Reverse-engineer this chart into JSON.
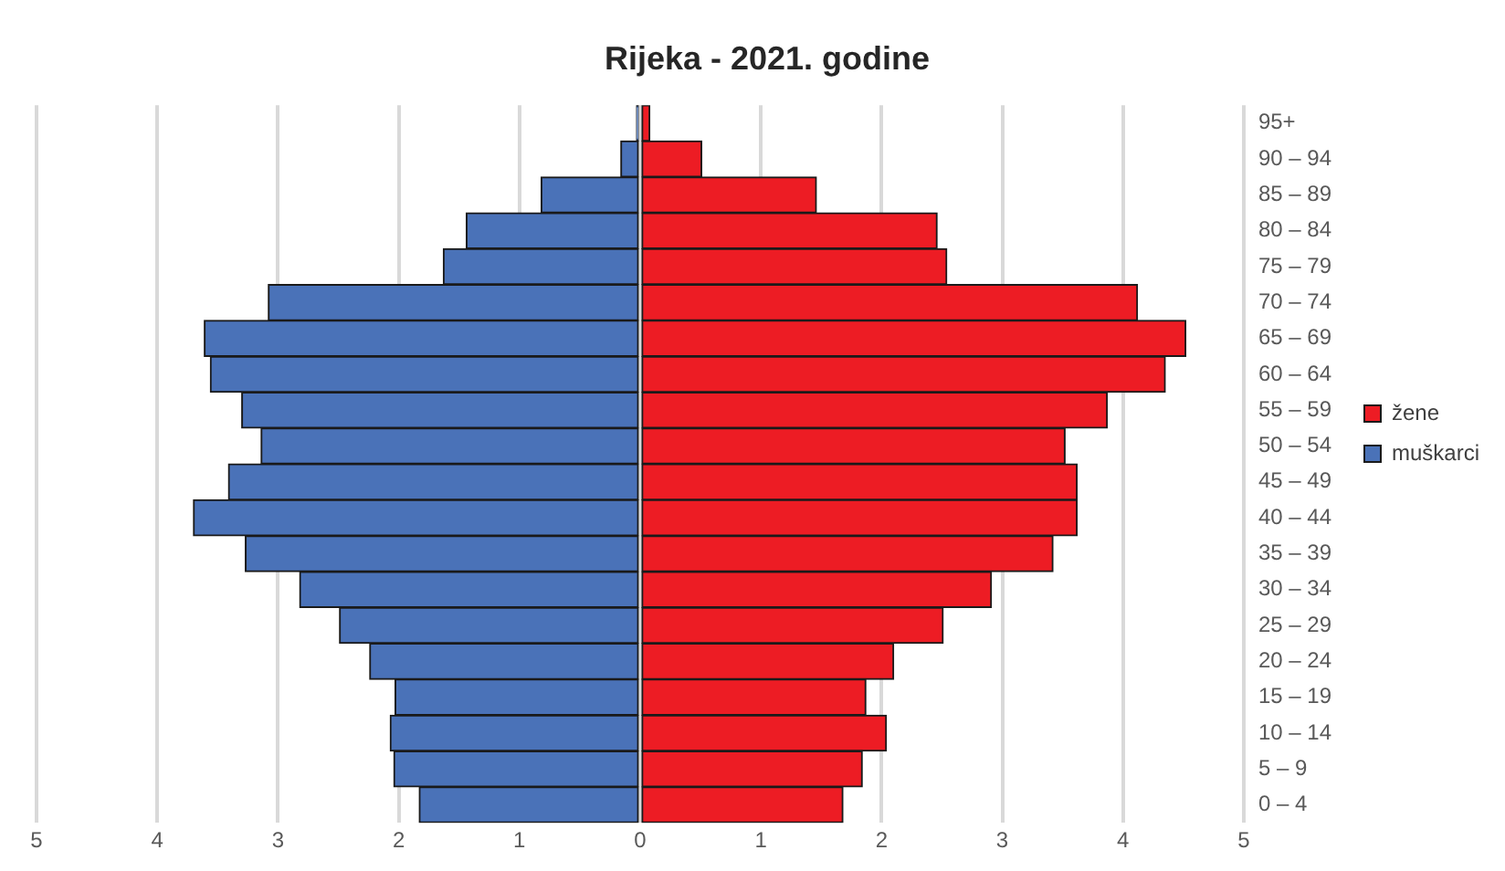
{
  "chart_data": {
    "type": "bar",
    "title": "Rijeka - 2021. godine",
    "orientation": "horizontal",
    "stacked": true,
    "categories": [
      "95+",
      "90 – 94",
      "85 – 89",
      "80 – 84",
      "75 – 79",
      "70 – 74",
      "65 – 69",
      "60 – 64",
      "55 – 59",
      "50 – 54",
      "45 – 49",
      "40 – 44",
      "35 – 39",
      "30 – 34",
      "25 – 29",
      "20 – 24",
      "15 – 19",
      "10 – 14",
      "5 – 9",
      "0 – 4"
    ],
    "series": [
      {
        "name": "žene",
        "color": "#ed1c24",
        "values": [
          0.08,
          0.51,
          1.46,
          2.46,
          2.54,
          4.12,
          4.52,
          4.35,
          3.87,
          3.52,
          3.62,
          3.62,
          3.42,
          2.91,
          2.51,
          2.1,
          1.87,
          2.04,
          1.84,
          1.68
        ]
      },
      {
        "name": "muškarci",
        "color": "#4a72b8",
        "values": [
          -0.03,
          -0.16,
          -0.82,
          -1.44,
          -1.63,
          -3.08,
          -3.61,
          -3.56,
          -3.3,
          -3.14,
          -3.41,
          -3.7,
          -3.27,
          -2.82,
          -2.49,
          -2.24,
          -2.03,
          -2.07,
          -2.04,
          -1.83
        ]
      }
    ],
    "xlim": [
      -5,
      5
    ],
    "xticks": [
      {
        "value": -5,
        "label": "5"
      },
      {
        "value": -4,
        "label": "4"
      },
      {
        "value": -3,
        "label": "3"
      },
      {
        "value": -2,
        "label": "2"
      },
      {
        "value": -1,
        "label": "1"
      },
      0,
      1,
      2,
      3,
      4,
      5
    ],
    "grid": "x",
    "legend": "right"
  }
}
